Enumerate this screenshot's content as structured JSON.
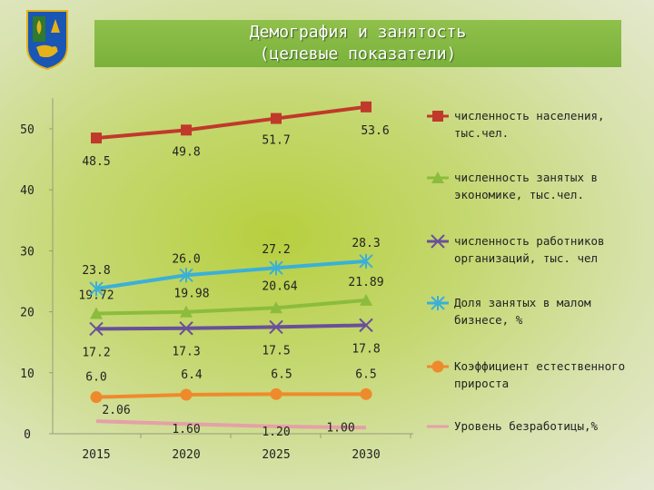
{
  "header": {
    "title_line1": "Демография и занятость",
    "title_line2": "(целевые  показатели)"
  },
  "colors": {
    "title_band": "#7ab23c",
    "emblem_blue": "#1a56b4",
    "emblem_gold": "#e5b219"
  },
  "chart_data": {
    "type": "line",
    "categories": [
      "2015",
      "2020",
      "2025",
      "2030"
    ],
    "ylim": [
      0,
      50
    ],
    "yticks": [
      "0",
      "10",
      "20",
      "30",
      "40",
      "50"
    ],
    "grid": false,
    "legend_position": "right",
    "series": [
      {
        "name": "численность населения, тыс.чел.",
        "values": [
          48.5,
          49.8,
          51.7,
          53.6
        ],
        "labels": [
          "48.5",
          "49.8",
          "51.7",
          "53.6"
        ],
        "color": "#c0392b",
        "marker": "square"
      },
      {
        "name": "численность занятых в экономике, тыс.чел.",
        "values": [
          19.72,
          19.98,
          20.64,
          21.89
        ],
        "labels": [
          "19.72",
          "19.98",
          "20.64",
          "21.89"
        ],
        "color": "#8cbc3c",
        "marker": "triangle"
      },
      {
        "name": "численность работников организаций, тыс. чел",
        "values": [
          17.2,
          17.3,
          17.5,
          17.8
        ],
        "labels": [
          "17.2",
          "17.3",
          "17.5",
          "17.8"
        ],
        "color": "#6a4f9a",
        "marker": "x"
      },
      {
        "name": "Доля занятых в малом бизнесе,  %",
        "values": [
          23.8,
          26.0,
          27.2,
          28.3
        ],
        "labels": [
          "23.8",
          "26.0",
          "27.2",
          "28.3"
        ],
        "color": "#3ab0d8",
        "marker": "star"
      },
      {
        "name": "Коэффициент естественного прироста",
        "values": [
          6.0,
          6.4,
          6.5,
          6.5
        ],
        "labels": [
          "6.0",
          "6.4",
          "6.5",
          "6.5"
        ],
        "color": "#ef8a2c",
        "marker": "circle"
      },
      {
        "name": "Уровень безработицы,%",
        "values": [
          2.06,
          1.6,
          1.2,
          1.0
        ],
        "labels": [
          "2.06",
          "1.60",
          "1.20",
          "1.00"
        ],
        "color": "#e5a0a8",
        "marker": "none"
      }
    ]
  }
}
